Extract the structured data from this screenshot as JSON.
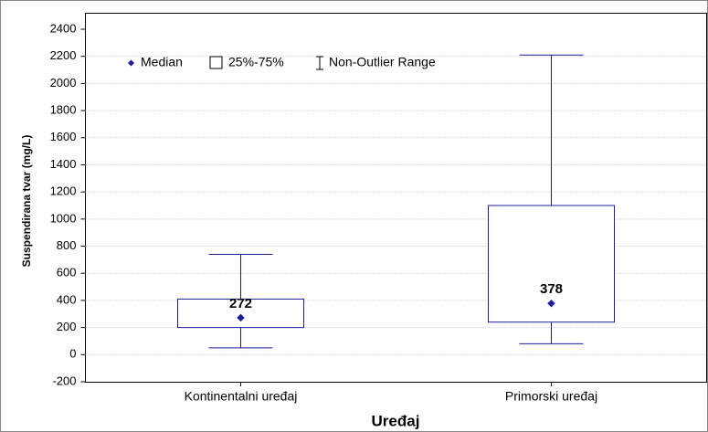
{
  "chart_data": {
    "type": "box",
    "x_label": "Uređaj",
    "y_label": "Suspendirana tvar (mg/L)",
    "categories": [
      "Kontinentalni uređaj",
      "Primorski uređaj"
    ],
    "median": [
      272,
      378
    ],
    "q1": [
      200,
      240
    ],
    "q3": [
      410,
      1100
    ],
    "whisker_low": [
      50,
      80
    ],
    "whisker_high": [
      740,
      2210
    ],
    "legend": [
      "Median",
      "25%-75%",
      "Non-Outlier Range"
    ],
    "color": "#1c1c9c",
    "grid": true,
    "ylim": [
      -200,
      2400
    ],
    "yticks": [
      -200,
      0,
      200,
      400,
      600,
      800,
      1000,
      1200,
      1400,
      1600,
      1800,
      2000,
      2200,
      2400
    ]
  }
}
